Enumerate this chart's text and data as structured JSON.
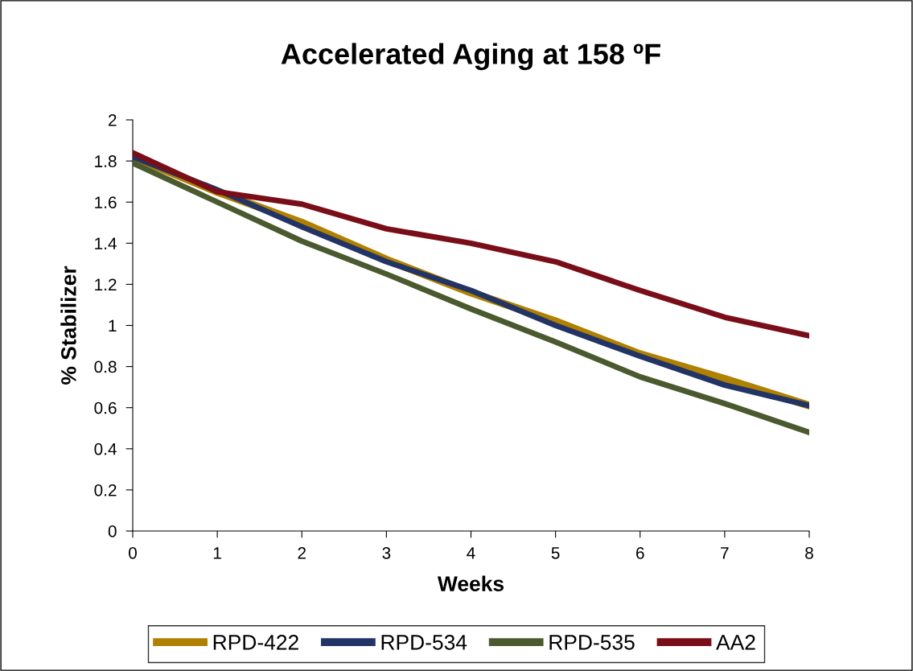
{
  "chart_data": {
    "type": "line",
    "title": "Accelerated Aging at 158 ºF",
    "xlabel": "Weeks",
    "ylabel": "% Stabilizer",
    "x": [
      0,
      1,
      2,
      3,
      4,
      5,
      6,
      7,
      8
    ],
    "series": [
      {
        "name": "RPD-422",
        "color": "#b08000",
        "values": [
          1.82,
          1.65,
          1.5,
          1.32,
          1.16,
          1.02,
          0.86,
          0.74,
          0.61
        ]
      },
      {
        "name": "RPD-534",
        "color": "#223366",
        "values": [
          1.82,
          1.66,
          1.48,
          1.31,
          1.17,
          1.0,
          0.85,
          0.71,
          0.61
        ]
      },
      {
        "name": "RPD-535",
        "color": "#4a5a2e",
        "values": [
          1.79,
          1.6,
          1.41,
          1.25,
          1.08,
          0.92,
          0.75,
          0.62,
          0.48
        ]
      },
      {
        "name": "AA2",
        "color": "#7a0e18",
        "values": [
          1.84,
          1.65,
          1.59,
          1.47,
          1.4,
          1.31,
          1.17,
          1.04,
          0.95
        ]
      }
    ],
    "xlim": [
      0,
      8
    ],
    "xticks": [
      0,
      1,
      2,
      3,
      4,
      5,
      6,
      7,
      8
    ],
    "ylim": [
      0,
      2
    ],
    "yticks": [
      0,
      0.2,
      0.4,
      0.6,
      0.8,
      1,
      1.2,
      1.4,
      1.6,
      1.8,
      2
    ],
    "grid": false,
    "legend": "bottom",
    "marker": "none",
    "line_style": "solid"
  }
}
